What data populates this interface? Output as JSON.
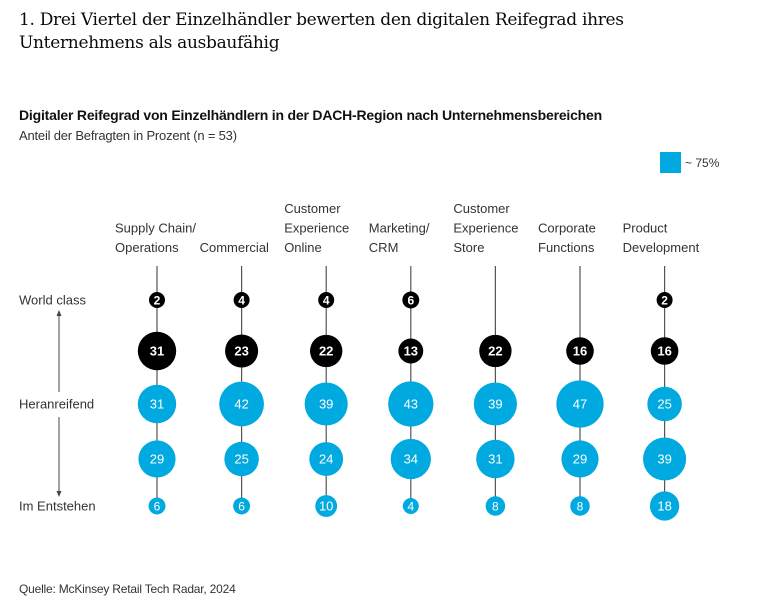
{
  "title": "1. Drei Viertel der Einzelhändler bewerten den digitalen Reifegrad ihres Unternehmens als ausbaufähig",
  "source": "Quelle: McKinsey Retail Tech Radar, 2024",
  "legend": {
    "label": "~ 75%",
    "color": "#00a9e0"
  },
  "colors": {
    "dark": "#000000",
    "accent": "#00a9e0",
    "line": "#555555",
    "axis_text": "#333333"
  },
  "chart_data": {
    "type": "bubble-matrix",
    "title": "Digitaler Reifegrad von Einzelhändlern in der DACH-Region nach Unternehmensbereichen",
    "subtitle": "Anteil der Befragten in Prozent (n = 53)",
    "y_axis_labels": [
      "World class",
      "Heranreifend",
      "Im Entstehen"
    ],
    "levels": 5,
    "categories": [
      {
        "label_lines": [
          "Supply Chain/",
          "Operations"
        ],
        "values": [
          2,
          31,
          31,
          29,
          6
        ]
      },
      {
        "label_lines": [
          "Commercial"
        ],
        "values": [
          4,
          23,
          42,
          25,
          6
        ]
      },
      {
        "label_lines": [
          "Customer",
          "Experience",
          "Online"
        ],
        "values": [
          4,
          22,
          39,
          24,
          10
        ]
      },
      {
        "label_lines": [
          "Marketing/",
          "CRM"
        ],
        "values": [
          6,
          13,
          43,
          34,
          4
        ]
      },
      {
        "label_lines": [
          "Customer",
          "Experience",
          "Store"
        ],
        "values": [
          null,
          22,
          39,
          31,
          8
        ]
      },
      {
        "label_lines": [
          "Corporate",
          "Functions"
        ],
        "values": [
          null,
          16,
          47,
          29,
          8
        ]
      },
      {
        "label_lines": [
          "Product",
          "Development"
        ],
        "values": [
          2,
          16,
          25,
          39,
          18
        ]
      }
    ],
    "level_colors": [
      "dark",
      "dark",
      "accent",
      "accent",
      "accent"
    ],
    "legend_note": "Blue levels represent ~75% of respondents"
  }
}
